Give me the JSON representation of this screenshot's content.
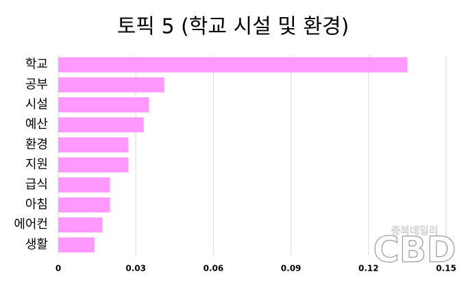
{
  "chart_data": {
    "type": "bar",
    "orientation": "horizontal",
    "title": "토픽 5 (학교 시설 및 환경)",
    "categories": [
      "학교",
      "공부",
      "시설",
      "예산",
      "환경",
      "지원",
      "급식",
      "아침",
      "에어컨",
      "생활"
    ],
    "values": [
      0.135,
      0.041,
      0.035,
      0.033,
      0.027,
      0.027,
      0.02,
      0.02,
      0.017,
      0.014
    ],
    "color": "#ff99ff",
    "xlim": [
      0,
      0.15
    ],
    "xticks": [
      0,
      0.03,
      0.06,
      0.09,
      0.12,
      0.15
    ],
    "grid": true
  },
  "watermark": {
    "small": "충북데일리",
    "large": "CBD"
  }
}
